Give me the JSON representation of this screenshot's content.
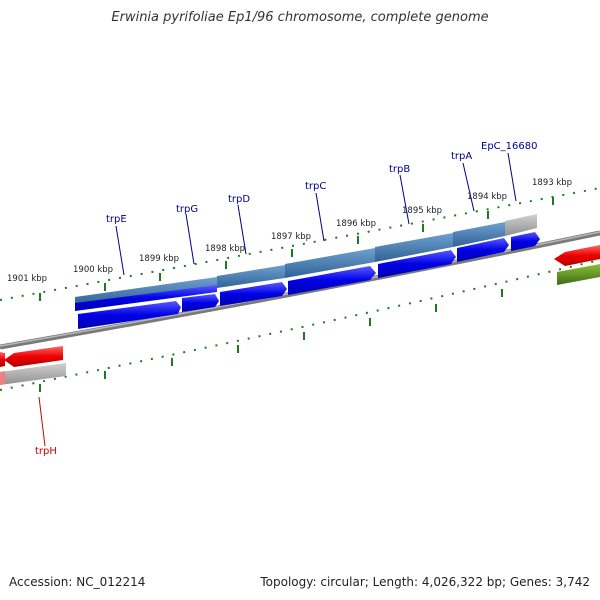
{
  "title": "Erwinia pyrifoliae Ep1/96 chromosome, complete genome",
  "footer": {
    "accession": "Accession: NC_012214",
    "summary": "Topology: circular; Length: 4,026,322 bp; Genes: 3,742"
  },
  "colors": {
    "backbone": "#7a7a7a",
    "tick": "#1e7a1e",
    "forward_gene": "#1010dd",
    "operon_bar": "#4a82b4",
    "gray_gene": "#a8a8a8",
    "reverse_gene": "#ee1111",
    "olive_gene": "#5a8a1a",
    "label_blue": "#00008b",
    "label_red": "#cc0000"
  },
  "scale": {
    "unit": "kbp",
    "labels": [
      "1901 kbp",
      "1900 kbp",
      "1899 kbp",
      "1898 kbp",
      "1897 kbp",
      "1896 kbp",
      "1895 kbp",
      "1894 kbp",
      "1893 kbp"
    ]
  },
  "genes": {
    "forward": [
      "trpE",
      "trpG",
      "trpD",
      "trpC",
      "trpB",
      "trpA",
      "EpC_16680"
    ],
    "reverse": [
      "trpH"
    ]
  }
}
